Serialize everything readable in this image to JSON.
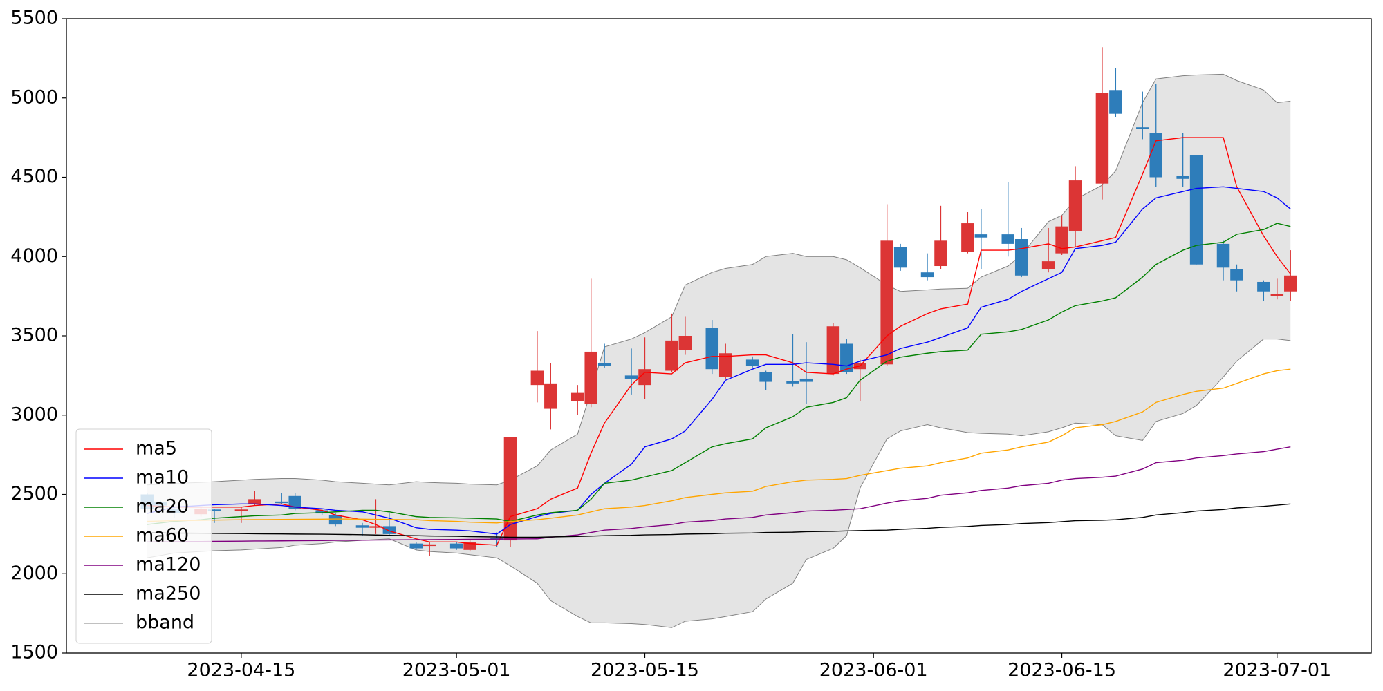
{
  "chart_data": {
    "type": "candlestick",
    "x": [
      "2023-04-08",
      "2023-04-09",
      "2023-04-10",
      "2023-04-12",
      "2023-04-13",
      "2023-04-15",
      "2023-04-16",
      "2023-04-18",
      "2023-04-19",
      "2023-04-21",
      "2023-04-22",
      "2023-04-24",
      "2023-04-25",
      "2023-04-26",
      "2023-04-28",
      "2023-04-29",
      "2023-05-01",
      "2023-05-02",
      "2023-05-04",
      "2023-05-05",
      "2023-05-07",
      "2023-05-08",
      "2023-05-10",
      "2023-05-11",
      "2023-05-12",
      "2023-05-14",
      "2023-05-15",
      "2023-05-17",
      "2023-05-18",
      "2023-05-20",
      "2023-05-21",
      "2023-05-23",
      "2023-05-24",
      "2023-05-26",
      "2023-05-27",
      "2023-05-29",
      "2023-05-30",
      "2023-05-31",
      "2023-06-02",
      "2023-06-03",
      "2023-06-05",
      "2023-06-06",
      "2023-06-08",
      "2023-06-09",
      "2023-06-11",
      "2023-06-12",
      "2023-06-14",
      "2023-06-15",
      "2023-06-16",
      "2023-06-18",
      "2023-06-19",
      "2023-06-21",
      "2023-06-22",
      "2023-06-24",
      "2023-06-25",
      "2023-06-27",
      "2023-06-28",
      "2023-06-30",
      "2023-07-01",
      "2023-07-02"
    ],
    "open": [
      2500,
      2450,
      2410,
      2375,
      2405,
      2395,
      2440,
      2455,
      2490,
      2400,
      2370,
      2305,
      2290,
      2300,
      2190,
      2175,
      2190,
      2150,
      2225,
      2210,
      3190,
      3040,
      3090,
      3070,
      3330,
      3250,
      3190,
      3280,
      3410,
      3550,
      3240,
      3350,
      3270,
      3215,
      3230,
      3260,
      3450,
      3290,
      3320,
      4060,
      3900,
      3940,
      4030,
      4140,
      4140,
      4110,
      3920,
      4020,
      4160,
      4460,
      5050,
      4815,
      4780,
      4510,
      4640,
      4080,
      3920,
      3840,
      3750,
      3780
    ],
    "high": [
      2510,
      2460,
      2420,
      2420,
      2410,
      2420,
      2520,
      2510,
      2510,
      2410,
      2380,
      2320,
      2470,
      2380,
      2200,
      2200,
      2200,
      2210,
      2260,
      2860,
      3530,
      3330,
      3190,
      3860,
      3450,
      3420,
      3490,
      3640,
      3620,
      3600,
      3450,
      3370,
      3280,
      3510,
      3460,
      3580,
      3480,
      3350,
      4330,
      4080,
      4020,
      4320,
      4280,
      4300,
      4470,
      4180,
      4180,
      4260,
      4570,
      5320,
      5190,
      5040,
      5090,
      4780,
      4640,
      4100,
      3950,
      3850,
      3860,
      4040
    ],
    "low": [
      2400,
      2420,
      2350,
      2360,
      2320,
      2320,
      2430,
      2440,
      2400,
      2370,
      2300,
      2240,
      2250,
      2240,
      2150,
      2110,
      2150,
      2140,
      2170,
      2170,
      3080,
      2910,
      3000,
      3050,
      3300,
      3130,
      3100,
      3270,
      3380,
      3260,
      3230,
      3300,
      3160,
      3180,
      3070,
      3250,
      3260,
      3090,
      3310,
      3910,
      3850,
      3920,
      4020,
      3920,
      4000,
      3870,
      3900,
      4010,
      4060,
      4360,
      4880,
      4740,
      4440,
      4440,
      3950,
      3850,
      3780,
      3720,
      3730,
      3720
    ],
    "close": [
      2410,
      2430,
      2380,
      2410,
      2395,
      2405,
      2470,
      2445,
      2410,
      2380,
      2310,
      2290,
      2300,
      2250,
      2160,
      2185,
      2160,
      2200,
      2215,
      2860,
      3280,
      3200,
      3140,
      3400,
      3310,
      3230,
      3290,
      3470,
      3500,
      3290,
      3390,
      3310,
      3210,
      3200,
      3210,
      3560,
      3270,
      3330,
      4100,
      3930,
      3870,
      4100,
      4210,
      4120,
      4080,
      3880,
      3970,
      4190,
      4480,
      5030,
      4900,
      4805,
      4500,
      4490,
      3950,
      3930,
      3850,
      3780,
      3765,
      3880
    ],
    "up_color": "#dc3535",
    "down_color": "#2e7dba",
    "series": [
      {
        "name": "ma5",
        "color": "#ff0000",
        "values": [
          2430,
          2425,
          2420,
          2420,
          2420,
          2420,
          2430,
          2440,
          2420,
          2400,
          2370,
          2340,
          2310,
          2270,
          2220,
          2200,
          2200,
          2190,
          2180,
          2360,
          2410,
          2470,
          2540,
          2760,
          2950,
          3190,
          3270,
          3260,
          3330,
          3370,
          3370,
          3380,
          3380,
          3330,
          3270,
          3260,
          3290,
          3310,
          3500,
          3560,
          3640,
          3670,
          3700,
          4040,
          4040,
          4050,
          4080,
          4050,
          4060,
          4100,
          4120,
          4520,
          4730,
          4750,
          4750,
          4750,
          4440,
          4130,
          4000,
          3890
        ]
      },
      {
        "name": "ma10",
        "color": "#0000ff",
        "values": [
          2380,
          2400,
          2420,
          2430,
          2435,
          2440,
          2440,
          2430,
          2420,
          2410,
          2400,
          2390,
          2370,
          2350,
          2290,
          2280,
          2275,
          2270,
          2250,
          2310,
          2360,
          2380,
          2400,
          2500,
          2570,
          2690,
          2800,
          2850,
          2900,
          3100,
          3220,
          3290,
          3320,
          3320,
          3330,
          3320,
          3310,
          3340,
          3380,
          3420,
          3460,
          3490,
          3550,
          3680,
          3730,
          3780,
          3860,
          3900,
          4050,
          4070,
          4090,
          4300,
          4370,
          4410,
          4430,
          4440,
          4430,
          4410,
          4370,
          4300
        ]
      },
      {
        "name": "ma20",
        "color": "#008000",
        "values": [
          2310,
          2320,
          2330,
          2340,
          2350,
          2360,
          2365,
          2370,
          2380,
          2385,
          2390,
          2400,
          2400,
          2390,
          2360,
          2355,
          2352,
          2350,
          2345,
          2330,
          2370,
          2385,
          2400,
          2470,
          2570,
          2590,
          2610,
          2650,
          2700,
          2800,
          2820,
          2850,
          2920,
          2990,
          3050,
          3080,
          3110,
          3220,
          3340,
          3365,
          3390,
          3400,
          3410,
          3510,
          3525,
          3540,
          3600,
          3650,
          3690,
          3720,
          3740,
          3870,
          3950,
          4040,
          4070,
          4090,
          4140,
          4170,
          4210,
          4190
        ]
      },
      {
        "name": "ma60",
        "color": "#ffa500",
        "values": [
          2330,
          2332,
          2334,
          2336,
          2338,
          2340,
          2341,
          2342,
          2343,
          2344,
          2345,
          2344,
          2343,
          2342,
          2340,
          2335,
          2330,
          2325,
          2320,
          2330,
          2340,
          2350,
          2370,
          2390,
          2410,
          2420,
          2430,
          2460,
          2480,
          2500,
          2510,
          2520,
          2550,
          2580,
          2590,
          2595,
          2600,
          2620,
          2650,
          2665,
          2680,
          2700,
          2730,
          2760,
          2780,
          2800,
          2830,
          2870,
          2920,
          2940,
          2960,
          3020,
          3080,
          3130,
          3150,
          3170,
          3200,
          3260,
          3280,
          3290
        ]
      },
      {
        "name": "ma120",
        "color": "#800080",
        "values": [
          2200,
          2201,
          2202,
          2203,
          2204,
          2205,
          2206,
          2207,
          2208,
          2209,
          2210,
          2211,
          2212,
          2213,
          2214,
          2215,
          2216,
          2217,
          2218,
          2219,
          2220,
          2230,
          2245,
          2260,
          2275,
          2285,
          2295,
          2310,
          2325,
          2335,
          2345,
          2355,
          2370,
          2385,
          2395,
          2400,
          2405,
          2410,
          2445,
          2460,
          2475,
          2495,
          2510,
          2525,
          2540,
          2555,
          2570,
          2590,
          2600,
          2608,
          2615,
          2660,
          2700,
          2715,
          2730,
          2745,
          2755,
          2770,
          2785,
          2800
        ]
      },
      {
        "name": "ma250",
        "color": "#000000",
        "values": [
          2260,
          2258,
          2256,
          2255,
          2254,
          2253,
          2252,
          2251,
          2250,
          2249,
          2248,
          2246,
          2244,
          2242,
          2240,
          2238,
          2236,
          2234,
          2232,
          2230,
          2230,
          2232,
          2235,
          2237,
          2240,
          2242,
          2245,
          2247,
          2250,
          2252,
          2255,
          2257,
          2260,
          2262,
          2265,
          2267,
          2270,
          2272,
          2275,
          2280,
          2286,
          2292,
          2298,
          2304,
          2310,
          2316,
          2322,
          2328,
          2334,
          2337,
          2340,
          2355,
          2370,
          2385,
          2395,
          2405,
          2415,
          2425,
          2432,
          2440
        ]
      }
    ],
    "band": {
      "name": "bband",
      "color": "#808080",
      "fill": "#e4e4e4",
      "upper": [
        2560,
        2565,
        2570,
        2575,
        2580,
        2590,
        2595,
        2600,
        2600,
        2590,
        2580,
        2570,
        2565,
        2560,
        2580,
        2575,
        2570,
        2565,
        2560,
        2590,
        2680,
        2780,
        2880,
        3150,
        3430,
        3480,
        3520,
        3620,
        3820,
        3900,
        3925,
        3950,
        4000,
        4020,
        4000,
        4000,
        3980,
        3930,
        3820,
        3780,
        3790,
        3795,
        3800,
        3870,
        3940,
        4010,
        4220,
        4260,
        4360,
        4450,
        4540,
        4970,
        5120,
        5140,
        5145,
        5150,
        5110,
        5050,
        4970,
        4980
      ],
      "lower": [
        2100,
        2115,
        2130,
        2140,
        2145,
        2150,
        2155,
        2165,
        2180,
        2190,
        2200,
        2210,
        2215,
        2220,
        2150,
        2140,
        2130,
        2120,
        2100,
        2050,
        1940,
        1830,
        1730,
        1690,
        1690,
        1685,
        1680,
        1660,
        1700,
        1715,
        1730,
        1760,
        1840,
        1940,
        2090,
        2160,
        2240,
        2540,
        2850,
        2900,
        2940,
        2920,
        2890,
        2885,
        2880,
        2870,
        2895,
        2920,
        2950,
        2940,
        2870,
        2840,
        2960,
        3010,
        3060,
        3240,
        3340,
        3480,
        3480,
        3470
      ]
    },
    "xlim": [
      "2023-04-02",
      "2023-07-08"
    ],
    "xticks": [
      "2023-04-15",
      "2023-05-01",
      "2023-05-15",
      "2023-06-01",
      "2023-06-15",
      "2023-07-01"
    ],
    "ylim": [
      1500,
      5500
    ],
    "yticks": [
      1500,
      2000,
      2500,
      3000,
      3500,
      4000,
      4500,
      5000,
      5500
    ],
    "grid": false,
    "legend": "lower left"
  }
}
